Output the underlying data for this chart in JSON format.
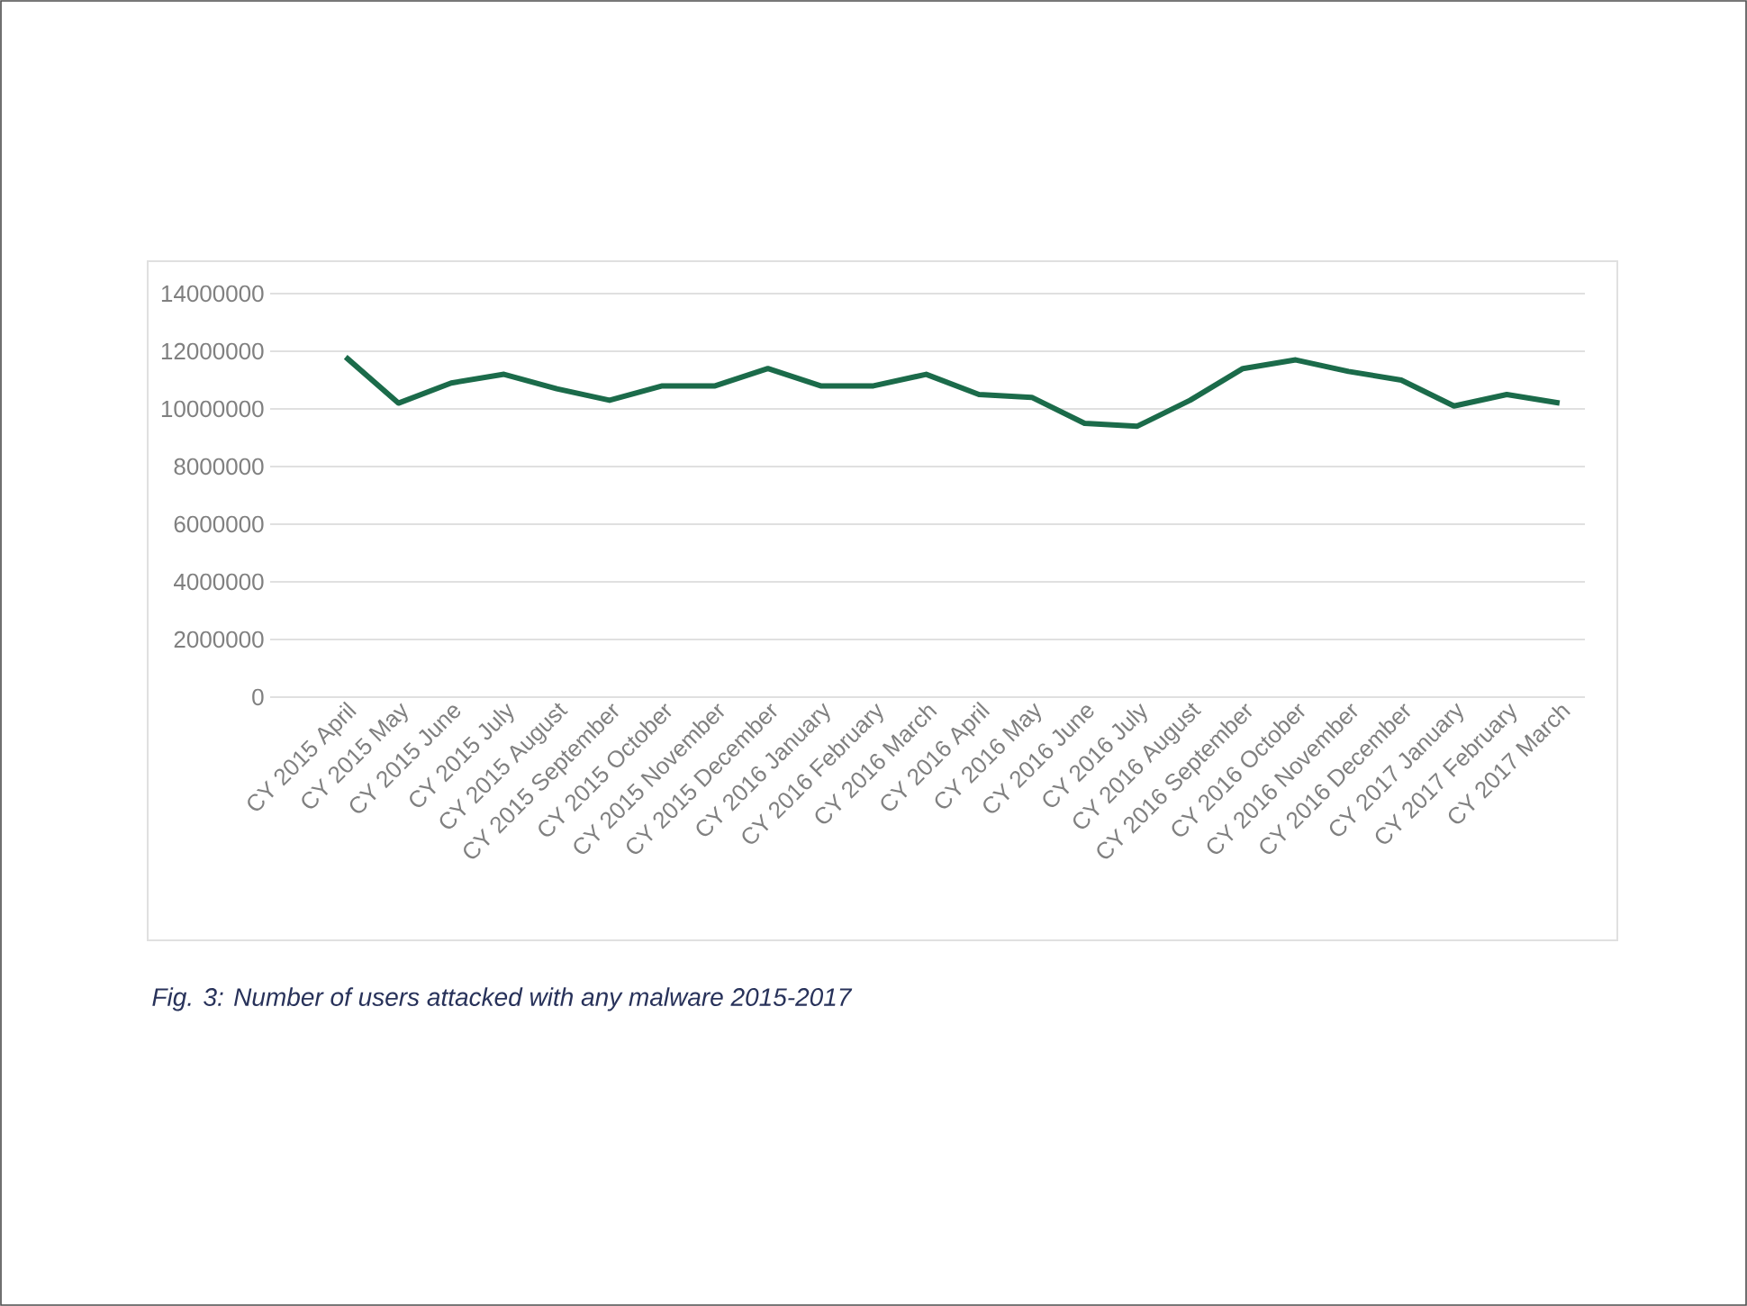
{
  "chart_data": {
    "type": "line",
    "categories": [
      "CY 2015 April",
      "CY 2015 May",
      "CY 2015 June",
      "CY 2015 July",
      "CY 2015 August",
      "CY 2015 September",
      "CY 2015 October",
      "CY 2015 November",
      "CY 2015 December",
      "CY 2016 January",
      "CY 2016 February",
      "CY 2016 March",
      "CY 2016 April",
      "CY 2016 May",
      "CY 2016 June",
      "CY 2016 July",
      "CY 2016 August",
      "CY 2016 September",
      "CY 2016 October",
      "CY 2016 November",
      "CY 2016 December",
      "CY 2017 January",
      "CY 2017 February",
      "CY 2017 March"
    ],
    "series": [
      {
        "color": "#1b6b4a",
        "values": [
          11800000,
          10200000,
          10900000,
          11200000,
          10700000,
          10300000,
          10800000,
          10800000,
          11400000,
          10800000,
          10800000,
          11200000,
          10500000,
          10400000,
          9500000,
          9400000,
          10300000,
          11400000,
          11700000,
          11300000,
          11000000,
          10100000,
          10500000,
          10200000
        ]
      }
    ],
    "ylim": [
      0,
      14000000
    ],
    "yticks": [
      0,
      2000000,
      4000000,
      6000000,
      8000000,
      10000000,
      12000000,
      14000000
    ],
    "grid": "y",
    "marker": "none",
    "line_style": "solid",
    "annotations": [
      "Fig. 3: Number of users attacked with any malware 2015-2017"
    ]
  }
}
